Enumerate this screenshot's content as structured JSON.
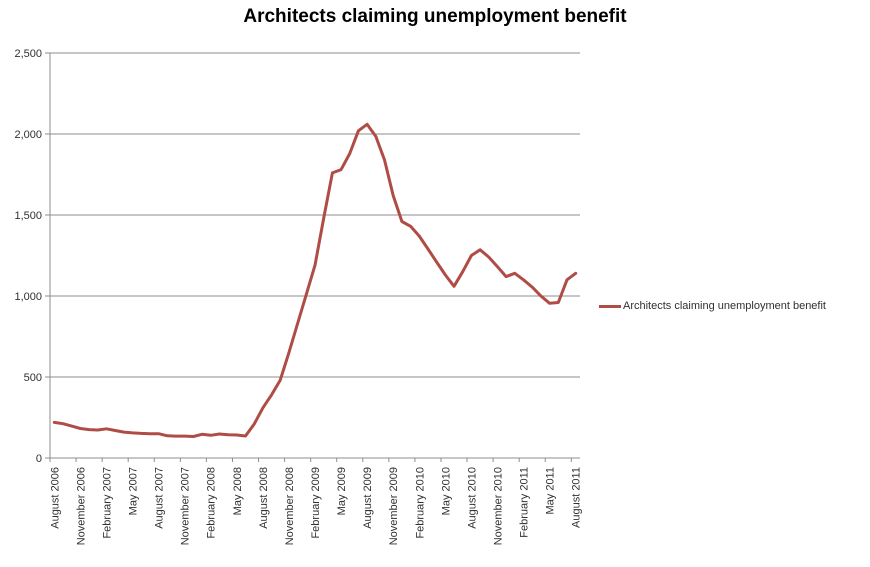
{
  "title": "Architects claiming unemployment benefit",
  "legend": {
    "label": "Architects claiming unemployment benefit"
  },
  "colors": {
    "series": "#AF4C46",
    "grid": "#8C8C8C",
    "axis": "#8C8C8C",
    "text": "#303030",
    "title_text": "#000000",
    "background": "#FFFFFF"
  },
  "chart_data": {
    "type": "line",
    "title": "Architects claiming unemployment benefit",
    "xlabel": "",
    "ylabel": "",
    "ylim": [
      0,
      2500
    ],
    "y_tick_interval": 500,
    "y_tick_labels": [
      "0",
      "500",
      "1,000",
      "1,500",
      "2,000",
      "2,500"
    ],
    "grid": "horizontal",
    "legend_position": "right",
    "x": [
      "August 2006",
      "September 2006",
      "October 2006",
      "November 2006",
      "December 2006",
      "January 2007",
      "February 2007",
      "March 2007",
      "April 2007",
      "May 2007",
      "June 2007",
      "July 2007",
      "August 2007",
      "September 2007",
      "October 2007",
      "November 2007",
      "December 2007",
      "January 2008",
      "February 2008",
      "March 2008",
      "April 2008",
      "May 2008",
      "June 2008",
      "July 2008",
      "August 2008",
      "September 2008",
      "October 2008",
      "November 2008",
      "December 2008",
      "January 2009",
      "February 2009",
      "March 2009",
      "April 2009",
      "May 2009",
      "June 2009",
      "July 2009",
      "August 2009",
      "September 2009",
      "October 2009",
      "November 2009",
      "December 2009",
      "January 2010",
      "February 2010",
      "March 2010",
      "April 2010",
      "May 2010",
      "June 2010",
      "July 2010",
      "August 2010",
      "September 2010",
      "October 2010",
      "November 2010",
      "December 2010",
      "January 2011",
      "February 2011",
      "March 2011",
      "April 2011",
      "May 2011",
      "June 2011",
      "July 2011",
      "August 2011"
    ],
    "x_tick_labels": [
      "August 2006",
      "November 2006",
      "February 2007",
      "May 2007",
      "August 2007",
      "November 2007",
      "February 2008",
      "May 2008",
      "August 2008",
      "November 2008",
      "February 2009",
      "May 2009",
      "August 2009",
      "November 2009",
      "February 2010",
      "May 2010",
      "August 2010",
      "November 2010",
      "February 2011",
      "May 2011",
      "August 2011"
    ],
    "x_tick_every": 3,
    "series": [
      {
        "name": "Architects claiming unemployment benefit",
        "values": [
          220,
          212,
          197,
          182,
          175,
          173,
          180,
          170,
          160,
          155,
          152,
          150,
          150,
          137,
          135,
          135,
          133,
          146,
          140,
          148,
          143,
          142,
          136,
          210,
          310,
          390,
          480,
          650,
          830,
          1010,
          1190,
          1480,
          1760,
          1780,
          1880,
          2020,
          2060,
          1985,
          1840,
          1620,
          1460,
          1430,
          1370,
          1290,
          1210,
          1130,
          1060,
          1150,
          1250,
          1285,
          1240,
          1180,
          1120,
          1140,
          1100,
          1055,
          1000,
          955,
          960,
          1100,
          1140
        ]
      }
    ]
  }
}
